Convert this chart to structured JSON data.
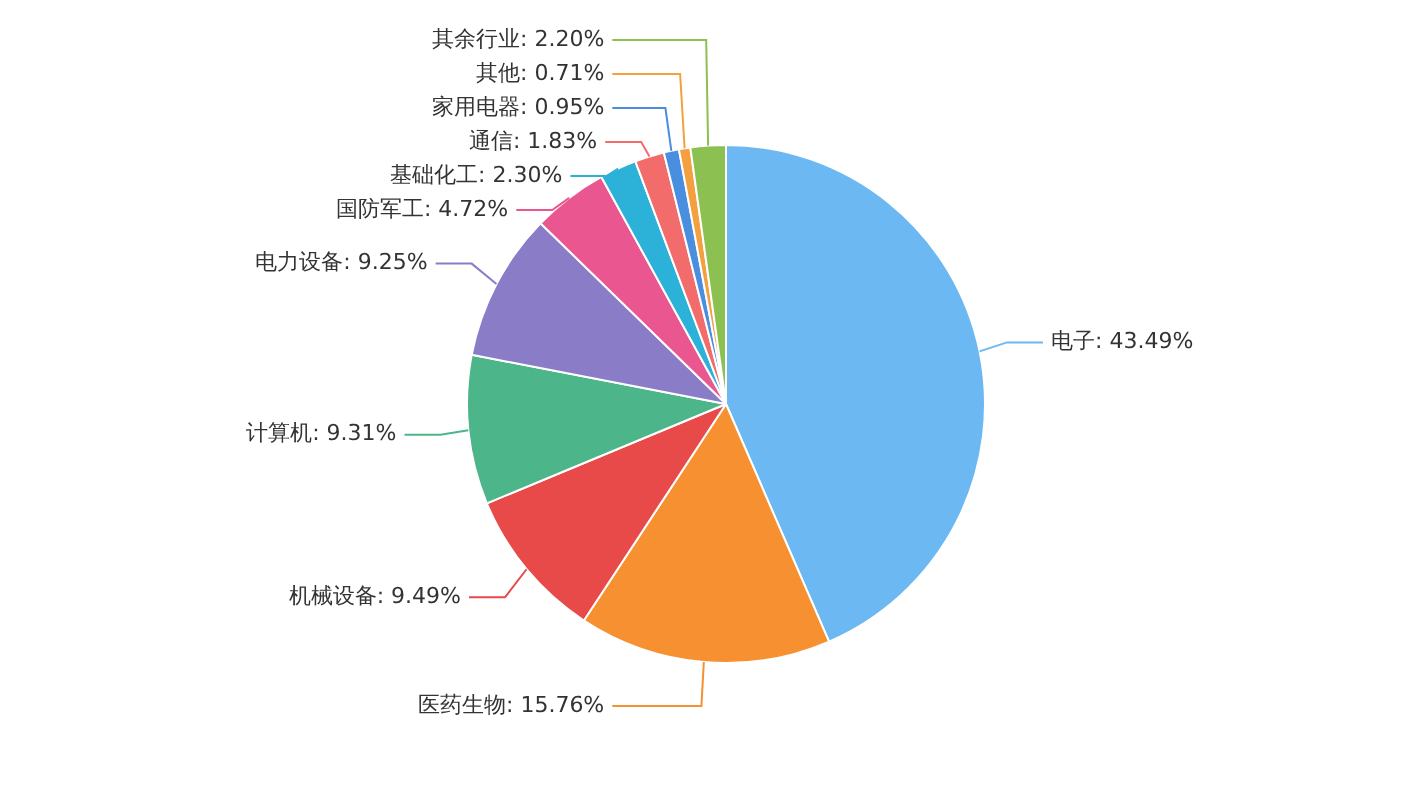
{
  "chart_data": {
    "type": "pie",
    "categories": [
      "电子",
      "医药生物",
      "机械设备",
      "计算机",
      "电力设备",
      "国防军工",
      "基础化工",
      "通信",
      "家用电器",
      "其他",
      "其余行业"
    ],
    "values": [
      43.49,
      15.76,
      9.49,
      9.31,
      9.25,
      4.72,
      2.3,
      1.83,
      0.95,
      0.71,
      2.2
    ],
    "value_labels": [
      "43.49%",
      "15.76%",
      "9.49%",
      "9.31%",
      "9.25%",
      "4.72%",
      "2.30%",
      "1.83%",
      "0.95%",
      "0.71%",
      "2.20%"
    ],
    "colors": [
      "#6cb8f2",
      "#f79030",
      "#e84a4a",
      "#4cb58a",
      "#8b7cc8",
      "#ea5690",
      "#2cb2d8",
      "#f26c6c",
      "#4a8ee0",
      "#f5a040",
      "#8cc152"
    ],
    "legend": false
  }
}
